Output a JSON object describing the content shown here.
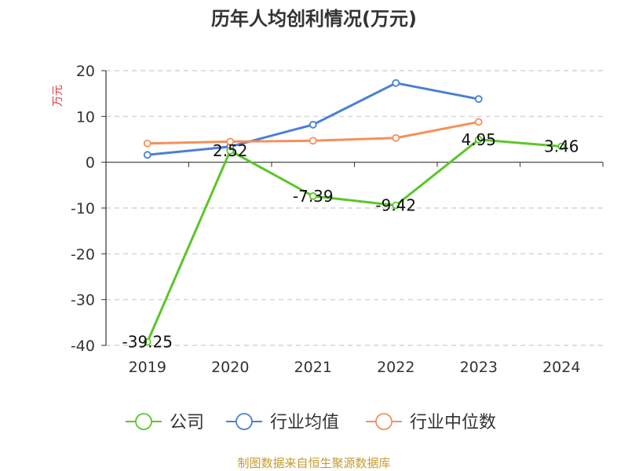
{
  "chart_data": {
    "type": "line",
    "title": "历年人均创利情况(万元)",
    "ylabel": "万元",
    "categories": [
      "2019",
      "2020",
      "2021",
      "2022",
      "2023",
      "2024"
    ],
    "ylim": [
      -40,
      20
    ],
    "yticks": [
      20,
      10,
      0,
      -10,
      -20,
      -30,
      -40
    ],
    "grid": true,
    "legend_position": "bottom",
    "series": [
      {
        "name": "公司",
        "color": "#5cc62a",
        "values": [
          -39.25,
          2.52,
          -7.39,
          -9.42,
          4.95,
          3.46
        ],
        "labels": [
          "-39.25",
          "2.52",
          "-7.39",
          "-9.42",
          "4.95",
          "3.46"
        ]
      },
      {
        "name": "行业均值",
        "color": "#4a7fd6",
        "values": [
          1.6,
          3.4,
          8.2,
          17.3,
          13.8,
          null
        ]
      },
      {
        "name": "行业中位数",
        "color": "#f4905c",
        "values": [
          4.1,
          4.5,
          4.7,
          5.3,
          8.8,
          null
        ]
      }
    ]
  },
  "footer": {
    "source": "制图数据来自恒生聚源数据库"
  },
  "colors": {
    "axis": "#333333",
    "grid": "#cccccc",
    "ylabel": "#e23b3b",
    "footer": "#c99a2e"
  }
}
